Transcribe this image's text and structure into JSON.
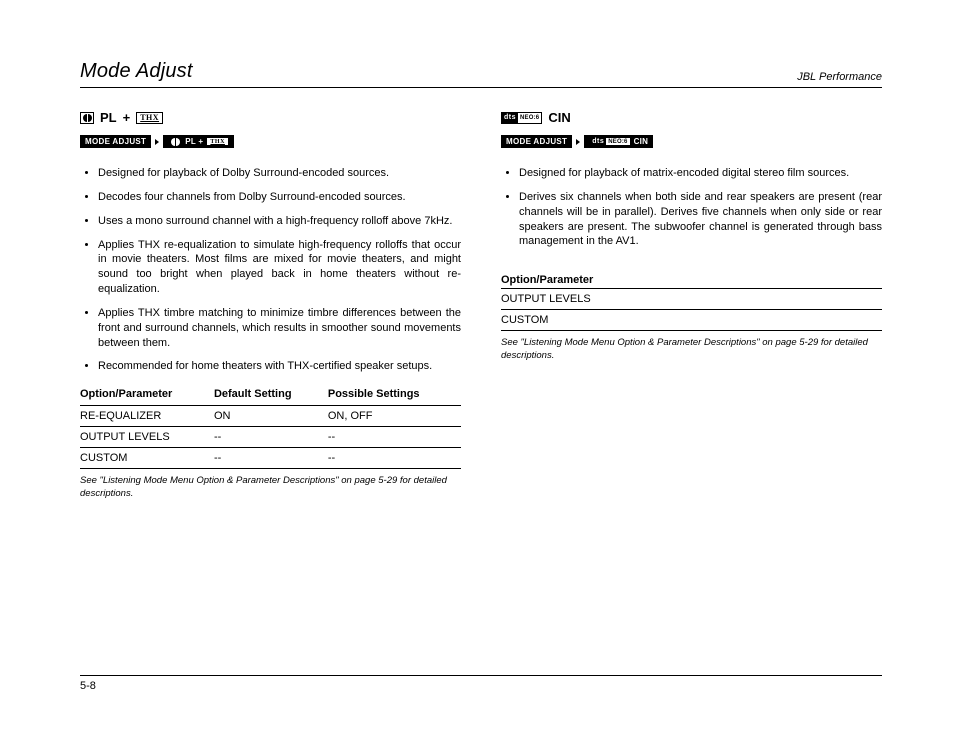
{
  "header": {
    "left": "Mode Adjust",
    "right": "JBL Performance"
  },
  "left": {
    "title": {
      "pl": "PL",
      "plus": "+",
      "thx": "THX"
    },
    "breadcrumb": {
      "first": "MODE ADJUST",
      "second_pl": "PL +",
      "second_thx": "THX"
    },
    "bullets": [
      "Designed for playback of Dolby Surround-encoded sources.",
      "Decodes four channels from Dolby Surround-encoded sources.",
      "Uses a mono surround channel with a high-frequency rolloff above 7kHz.",
      "Applies THX re-equalization to simulate high-frequency rolloffs that occur in movie theaters. Most films are mixed for movie theaters, and might sound too bright when played back in home theaters without re-equalization.",
      "Applies THX timbre matching to minimize timbre differences between the front and surround channels, which results in smoother sound movements between them.",
      "Recommended for home theaters with THX-certified speaker setups."
    ],
    "table": {
      "headers": [
        "Option/Parameter",
        "Default Setting",
        "Possible Settings"
      ],
      "rows": [
        [
          "RE-EQUALIZER",
          "ON",
          "ON, OFF"
        ],
        [
          "OUTPUT LEVELS",
          "--",
          "--"
        ],
        [
          "CUSTOM",
          "--",
          "--"
        ]
      ]
    },
    "footnote": "See \"Listening Mode Menu Option & Parameter Descriptions\" on page 5-29 for detailed descriptions."
  },
  "right": {
    "title": {
      "dts": "dts",
      "neo": "NEO:6",
      "cin": "CIN"
    },
    "breadcrumb": {
      "first": "MODE ADJUST",
      "second_cin": "CIN"
    },
    "bullets": [
      "Designed for playback of matrix-encoded digital stereo film sources.",
      "Derives six channels when both side and rear speakers are present (rear channels will be in parallel). Derives five channels when only side or rear speakers are present. The subwoofer channel is generated through bass management in the AV1."
    ],
    "table_title": "Option/Parameter",
    "table_rows": [
      "OUTPUT LEVELS",
      "CUSTOM"
    ],
    "footnote": "See \"Listening Mode Menu Option & Parameter Descriptions\" on page 5-29 for detailed descriptions."
  },
  "footer": "5-8"
}
